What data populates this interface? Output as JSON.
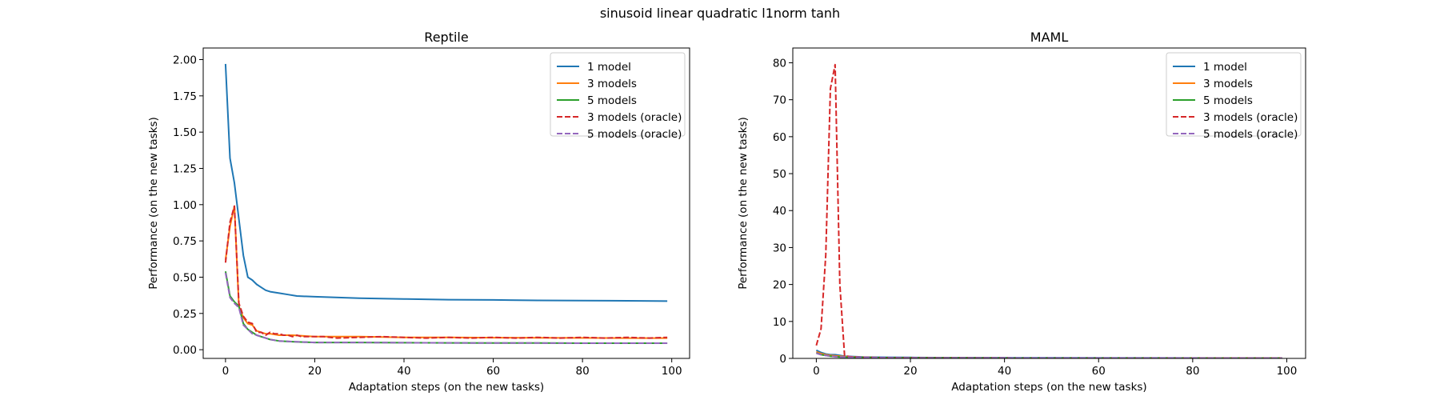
{
  "figure": {
    "suptitle": "sinusoid linear quadratic l1norm tanh"
  },
  "chart_data": [
    {
      "type": "line",
      "title": "Reptile",
      "xlabel": "Adaptation steps (on the new tasks)",
      "ylabel": "Performance (on the new tasks)",
      "xlim": [
        -5,
        104
      ],
      "ylim": [
        -0.06,
        2.08
      ],
      "xticks": [
        0,
        20,
        40,
        60,
        80,
        100
      ],
      "yticks": [
        0.0,
        0.25,
        0.5,
        0.75,
        1.0,
        1.25,
        1.5,
        1.75,
        2.0
      ],
      "ytick_labels": [
        "0.00",
        "0.25",
        "0.50",
        "0.75",
        "1.00",
        "1.25",
        "1.50",
        "1.75",
        "2.00"
      ],
      "grid": false,
      "legend_position": "top-right",
      "series": [
        {
          "name": "1 model",
          "color": "#1f77b4",
          "dash": "solid",
          "points": [
            [
              0,
              1.97
            ],
            [
              1,
              1.32
            ],
            [
              2,
              1.15
            ],
            [
              3,
              0.9
            ],
            [
              4,
              0.65
            ],
            [
              5,
              0.5
            ],
            [
              6,
              0.48
            ],
            [
              7,
              0.45
            ],
            [
              8,
              0.43
            ],
            [
              9,
              0.41
            ],
            [
              10,
              0.4
            ],
            [
              12,
              0.39
            ],
            [
              14,
              0.38
            ],
            [
              16,
              0.37
            ],
            [
              20,
              0.365
            ],
            [
              30,
              0.355
            ],
            [
              40,
              0.35
            ],
            [
              50,
              0.345
            ],
            [
              60,
              0.343
            ],
            [
              70,
              0.34
            ],
            [
              80,
              0.338
            ],
            [
              90,
              0.337
            ],
            [
              99,
              0.335
            ]
          ]
        },
        {
          "name": "3 models",
          "color": "#ff7f0e",
          "dash": "solid",
          "points": [
            [
              0,
              0.62
            ],
            [
              1,
              0.85
            ],
            [
              2,
              0.99
            ],
            [
              3,
              0.3
            ],
            [
              4,
              0.22
            ],
            [
              5,
              0.18
            ],
            [
              6,
              0.17
            ],
            [
              7,
              0.13
            ],
            [
              8,
              0.12
            ],
            [
              9,
              0.11
            ],
            [
              10,
              0.11
            ],
            [
              12,
              0.1
            ],
            [
              15,
              0.1
            ],
            [
              20,
              0.09
            ],
            [
              30,
              0.09
            ],
            [
              40,
              0.085
            ],
            [
              50,
              0.085
            ],
            [
              60,
              0.083
            ],
            [
              70,
              0.082
            ],
            [
              80,
              0.081
            ],
            [
              90,
              0.08
            ],
            [
              99,
              0.08
            ]
          ]
        },
        {
          "name": "5 models",
          "color": "#2ca02c",
          "dash": "solid",
          "points": [
            [
              0,
              0.54
            ],
            [
              1,
              0.37
            ],
            [
              2,
              0.33
            ],
            [
              3,
              0.3
            ],
            [
              4,
              0.18
            ],
            [
              5,
              0.14
            ],
            [
              6,
              0.12
            ],
            [
              7,
              0.1
            ],
            [
              8,
              0.09
            ],
            [
              9,
              0.08
            ],
            [
              10,
              0.07
            ],
            [
              12,
              0.06
            ],
            [
              15,
              0.055
            ],
            [
              20,
              0.05
            ],
            [
              30,
              0.05
            ],
            [
              40,
              0.048
            ],
            [
              50,
              0.047
            ],
            [
              60,
              0.046
            ],
            [
              70,
              0.046
            ],
            [
              80,
              0.045
            ],
            [
              90,
              0.045
            ],
            [
              99,
              0.045
            ]
          ]
        },
        {
          "name": "3 models (oracle)",
          "color": "#d62728",
          "dash": "dashed",
          "points": [
            [
              0,
              0.6
            ],
            [
              1,
              0.88
            ],
            [
              2,
              0.99
            ],
            [
              3,
              0.32
            ],
            [
              4,
              0.23
            ],
            [
              5,
              0.19
            ],
            [
              6,
              0.18
            ],
            [
              7,
              0.12
            ],
            [
              8,
              0.12
            ],
            [
              9,
              0.1
            ],
            [
              10,
              0.12
            ],
            [
              11,
              0.11
            ],
            [
              12,
              0.11
            ],
            [
              13,
              0.1
            ],
            [
              14,
              0.1
            ],
            [
              15,
              0.09
            ],
            [
              16,
              0.1
            ],
            [
              17,
              0.09
            ],
            [
              18,
              0.09
            ],
            [
              19,
              0.09
            ],
            [
              20,
              0.09
            ],
            [
              22,
              0.09
            ],
            [
              25,
              0.08
            ],
            [
              30,
              0.085
            ],
            [
              35,
              0.09
            ],
            [
              40,
              0.085
            ],
            [
              45,
              0.08
            ],
            [
              50,
              0.085
            ],
            [
              55,
              0.08
            ],
            [
              60,
              0.085
            ],
            [
              65,
              0.08
            ],
            [
              70,
              0.085
            ],
            [
              75,
              0.08
            ],
            [
              80,
              0.085
            ],
            [
              85,
              0.08
            ],
            [
              90,
              0.085
            ],
            [
              95,
              0.08
            ],
            [
              99,
              0.085
            ]
          ]
        },
        {
          "name": "5 models (oracle)",
          "color": "#9467bd",
          "dash": "dashed",
          "points": [
            [
              0,
              0.53
            ],
            [
              1,
              0.36
            ],
            [
              2,
              0.32
            ],
            [
              3,
              0.29
            ],
            [
              4,
              0.17
            ],
            [
              5,
              0.14
            ],
            [
              6,
              0.11
            ],
            [
              7,
              0.1
            ],
            [
              8,
              0.09
            ],
            [
              9,
              0.08
            ],
            [
              10,
              0.07
            ],
            [
              12,
              0.06
            ],
            [
              15,
              0.055
            ],
            [
              20,
              0.05
            ],
            [
              30,
              0.05
            ],
            [
              40,
              0.048
            ],
            [
              50,
              0.047
            ],
            [
              60,
              0.046
            ],
            [
              70,
              0.046
            ],
            [
              80,
              0.045
            ],
            [
              90,
              0.045
            ],
            [
              99,
              0.045
            ]
          ]
        }
      ]
    },
    {
      "type": "line",
      "title": "MAML",
      "xlabel": "Adaptation steps (on the new tasks)",
      "ylabel": "Performance (on the new tasks)",
      "xlim": [
        -5,
        104
      ],
      "ylim": [
        0,
        84
      ],
      "xticks": [
        0,
        20,
        40,
        60,
        80,
        100
      ],
      "yticks": [
        0,
        10,
        20,
        30,
        40,
        50,
        60,
        70,
        80
      ],
      "ytick_labels": [
        "0",
        "10",
        "20",
        "30",
        "40",
        "50",
        "60",
        "70",
        "80"
      ],
      "grid": false,
      "legend_position": "top-right",
      "series": [
        {
          "name": "1 model",
          "color": "#1f77b4",
          "dash": "solid",
          "points": [
            [
              0,
              2.2
            ],
            [
              1,
              1.6
            ],
            [
              2,
              1.2
            ],
            [
              3,
              1.0
            ],
            [
              4,
              1.0
            ],
            [
              5,
              0.8
            ],
            [
              6,
              0.6
            ],
            [
              8,
              0.5
            ],
            [
              10,
              0.4
            ],
            [
              15,
              0.3
            ],
            [
              20,
              0.25
            ],
            [
              30,
              0.2
            ],
            [
              50,
              0.15
            ],
            [
              70,
              0.12
            ],
            [
              99,
              0.1
            ]
          ]
        },
        {
          "name": "3 models",
          "color": "#ff7f0e",
          "dash": "solid",
          "points": [
            [
              0,
              1.8
            ],
            [
              1,
              1.3
            ],
            [
              2,
              1.0
            ],
            [
              3,
              0.8
            ],
            [
              4,
              0.7
            ],
            [
              5,
              0.6
            ],
            [
              6,
              0.5
            ],
            [
              8,
              0.4
            ],
            [
              10,
              0.3
            ],
            [
              15,
              0.2
            ],
            [
              20,
              0.15
            ],
            [
              50,
              0.1
            ],
            [
              99,
              0.08
            ]
          ]
        },
        {
          "name": "5 models",
          "color": "#2ca02c",
          "dash": "solid",
          "points": [
            [
              0,
              1.5
            ],
            [
              1,
              1.0
            ],
            [
              2,
              0.8
            ],
            [
              3,
              0.6
            ],
            [
              4,
              0.5
            ],
            [
              5,
              0.4
            ],
            [
              6,
              0.35
            ],
            [
              8,
              0.3
            ],
            [
              10,
              0.25
            ],
            [
              15,
              0.2
            ],
            [
              20,
              0.15
            ],
            [
              50,
              0.1
            ],
            [
              99,
              0.08
            ]
          ]
        },
        {
          "name": "3 models (oracle)",
          "color": "#d62728",
          "dash": "dashed",
          "points": [
            [
              0,
              3.5
            ],
            [
              1,
              8
            ],
            [
              2,
              28
            ],
            [
              3,
              73
            ],
            [
              4,
              79.5
            ],
            [
              5,
              20
            ],
            [
              6,
              0.8
            ],
            [
              7,
              0.5
            ],
            [
              8,
              0.4
            ],
            [
              10,
              0.3
            ],
            [
              15,
              0.2
            ],
            [
              20,
              0.15
            ],
            [
              50,
              0.1
            ],
            [
              99,
              0.08
            ]
          ]
        },
        {
          "name": "5 models (oracle)",
          "color": "#9467bd",
          "dash": "dashed",
          "points": [
            [
              0,
              1.4
            ],
            [
              1,
              1.0
            ],
            [
              2,
              0.8
            ],
            [
              3,
              0.6
            ],
            [
              4,
              0.5
            ],
            [
              5,
              0.4
            ],
            [
              6,
              0.35
            ],
            [
              8,
              0.3
            ],
            [
              10,
              0.25
            ],
            [
              15,
              0.2
            ],
            [
              20,
              0.15
            ],
            [
              50,
              0.1
            ],
            [
              99,
              0.08
            ]
          ]
        }
      ]
    }
  ]
}
